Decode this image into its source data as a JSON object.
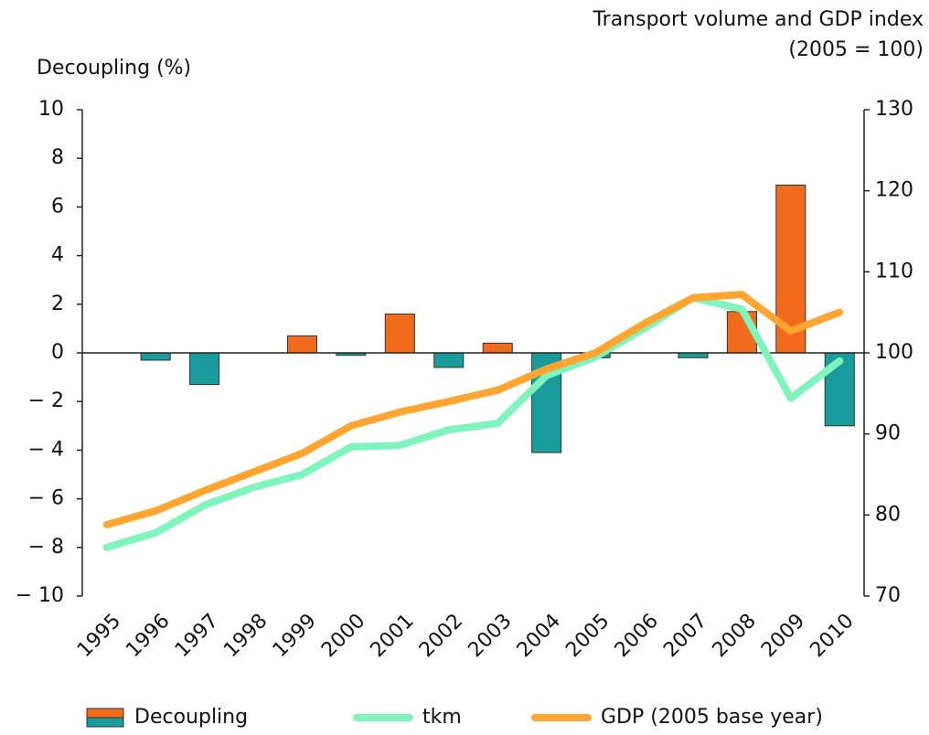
{
  "chart_data": {
    "type": "bar_line",
    "ylabel": "Decoupling (%)",
    "y2label_lines": [
      "Transport volume and GDP index",
      "(2005 = 100)"
    ],
    "categories": [
      "1995",
      "1996",
      "1997",
      "1998",
      "1999",
      "2000",
      "2001",
      "2002",
      "2003",
      "2004",
      "2005",
      "2006",
      "2007",
      "2008",
      "2009",
      "2010"
    ],
    "series": [
      {
        "name": "Decoupling",
        "type": "bar",
        "color": "#f26a1b",
        "negative_color": "#1a9c9c",
        "values": [
          0,
          -0.3,
          -1.3,
          0,
          0.7,
          -0.1,
          1.6,
          -0.6,
          0.4,
          -4.1,
          -0.2,
          0,
          -0.2,
          1.7,
          6.9,
          -3.0
        ]
      },
      {
        "name": "tkm",
        "type": "line",
        "axis": "y2",
        "color": "#7ff5bd",
        "values": [
          76,
          77.8,
          81.2,
          83.4,
          85,
          88.4,
          88.6,
          90.5,
          91.3,
          97.2,
          99.5,
          103,
          106.8,
          105.4,
          94.4,
          99
        ]
      },
      {
        "name": "GDP (2005 base year)",
        "type": "line",
        "axis": "y2",
        "color": "#ffa530",
        "values": [
          78.8,
          80.5,
          83,
          85.3,
          87.6,
          91,
          92.7,
          94,
          95.4,
          98,
          100,
          103.6,
          106.8,
          107.2,
          102.7,
          105
        ]
      }
    ],
    "ylim": [
      -10,
      10
    ],
    "yticks": [
      {
        "value": -10,
        "label": "− 10"
      },
      {
        "value": -8,
        "label": "− 8"
      },
      {
        "value": -6,
        "label": "− 6"
      },
      {
        "value": -4,
        "label": "− 4"
      },
      {
        "value": -2,
        "label": "− 2"
      },
      0,
      2,
      4,
      6,
      8,
      10
    ],
    "y2lim": [
      70,
      130
    ],
    "y2ticks": [
      70,
      80,
      90,
      100,
      110,
      120,
      130
    ]
  }
}
